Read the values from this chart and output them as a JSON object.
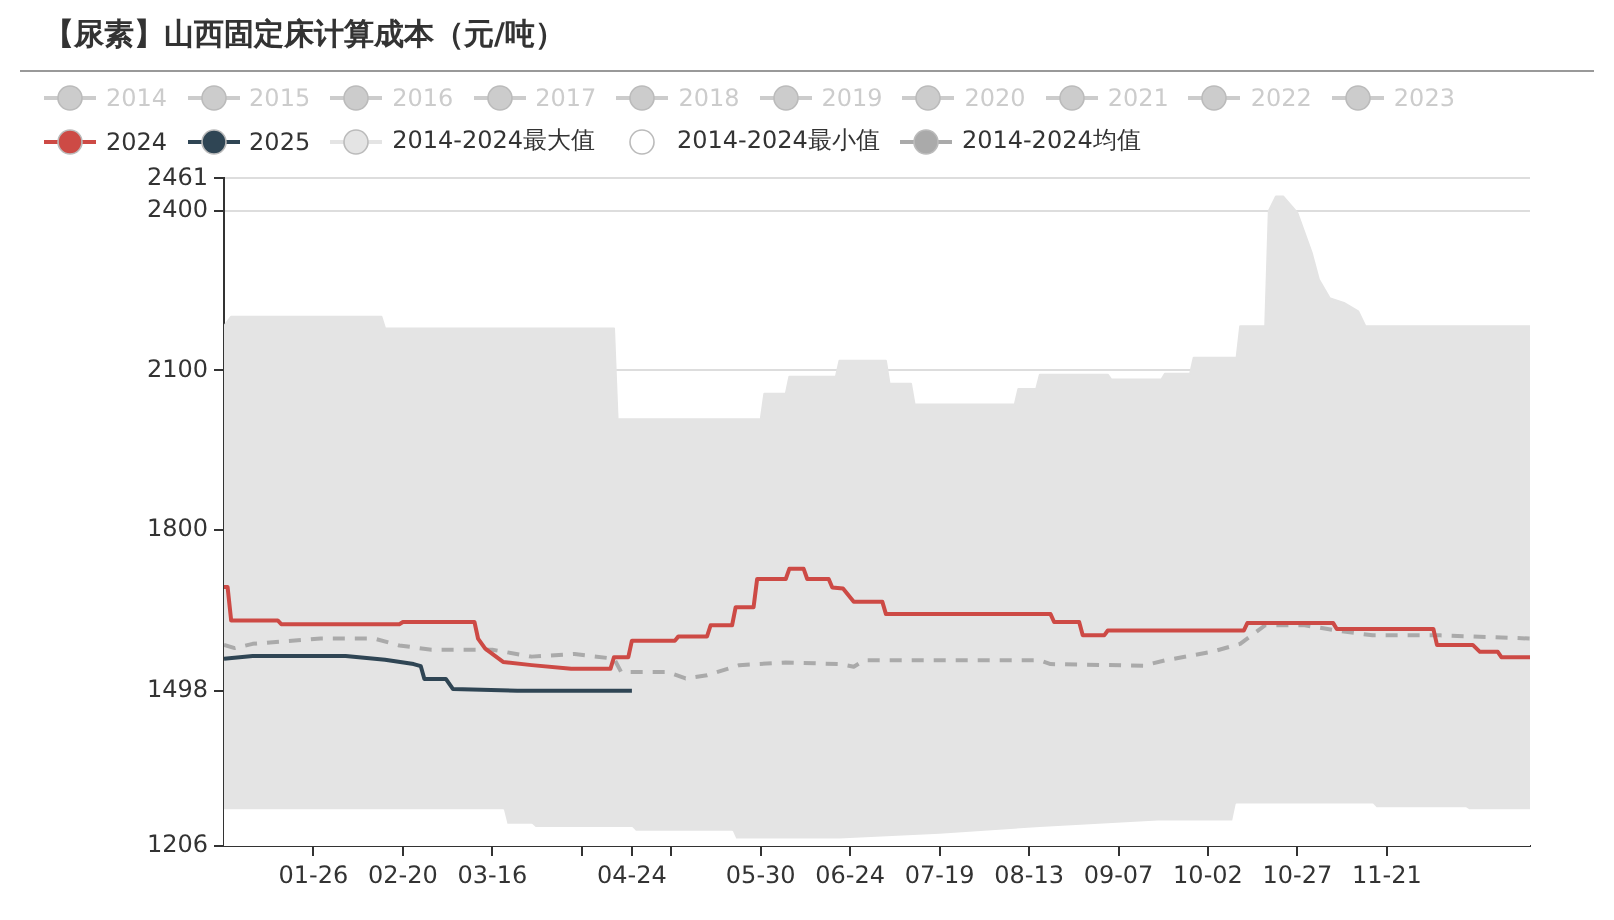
{
  "chart_data": {
    "type": "line",
    "title": "【尿素】山西固定床计算成本（元/吨）",
    "xlim": [
      "--01-01",
      "--12-31"
    ],
    "xticks": [
      {
        "value": "--01-26",
        "label": "01-26"
      },
      {
        "value": "--02-20",
        "label": "02-20"
      },
      {
        "value": "--03-16",
        "label": "03-16"
      },
      {
        "value": "--04-10",
        "label": null
      },
      {
        "value": "--04-24",
        "label": "04-24"
      },
      {
        "value": "--05-05",
        "label": null
      },
      {
        "value": "--05-30",
        "label": "05-30"
      },
      {
        "value": "--06-24",
        "label": "06-24"
      },
      {
        "value": "--07-19",
        "label": "07-19"
      },
      {
        "value": "--08-13",
        "label": "08-13"
      },
      {
        "value": "--09-07",
        "label": "09-07"
      },
      {
        "value": "--10-02",
        "label": "10-02"
      },
      {
        "value": "--10-27",
        "label": "10-27"
      },
      {
        "value": "--11-21",
        "label": "11-21"
      }
    ],
    "ylim": [
      1206,
      2461
    ],
    "yticks": [
      1206,
      1498,
      1800,
      2100,
      2400,
      2461
    ],
    "grid": "y",
    "legend": "top",
    "marker": "none",
    "series": [
      {
        "name": "2014",
        "color": "#cccccc"
      },
      {
        "name": "2015",
        "color": "#cccccc"
      },
      {
        "name": "2016",
        "color": "#cccccc"
      },
      {
        "name": "2017",
        "color": "#cccccc"
      },
      {
        "name": "2018",
        "color": "#cccccc"
      },
      {
        "name": "2019",
        "color": "#cccccc"
      },
      {
        "name": "2020",
        "color": "#cccccc"
      },
      {
        "name": "2021",
        "color": "#cccccc"
      },
      {
        "name": "2022",
        "color": "#cccccc"
      },
      {
        "name": "2023",
        "color": "#cccccc"
      },
      {
        "name": "2024",
        "color": "#cd4a45",
        "line_style": "solid",
        "x": [
          "--01-01",
          "--01-02",
          "--01-03",
          "--01-16",
          "--01-17",
          "--02-19",
          "--02-20",
          "--03-11",
          "--03-12",
          "--03-14",
          "--03-19",
          "--03-27",
          "--04-07",
          "--04-18",
          "--04-19",
          "--04-23",
          "--04-24",
          "--05-06",
          "--05-07",
          "--05-15",
          "--05-16",
          "--05-22",
          "--05-23",
          "--05-28",
          "--05-29",
          "--06-06",
          "--06-07",
          "--06-11",
          "--06-12",
          "--06-18",
          "--06-19",
          "--06-22",
          "--06-25",
          "--07-03",
          "--07-04",
          "--08-19",
          "--08-20",
          "--08-27",
          "--08-28",
          "--09-03",
          "--09-04",
          "--10-12",
          "--10-13",
          "--11-06",
          "--11-07",
          "--12-04",
          "--12-05",
          "--12-15",
          "--12-17",
          "--12-22",
          "--12-23",
          "--12-31"
        ],
        "values": [
          1693,
          1693,
          1630,
          1630,
          1623,
          1623,
          1627,
          1627,
          1596,
          1577,
          1552,
          1546,
          1539,
          1539,
          1561,
          1561,
          1592,
          1592,
          1600,
          1600,
          1621,
          1621,
          1655,
          1655,
          1708,
          1708,
          1727,
          1727,
          1708,
          1708,
          1692,
          1690,
          1665,
          1665,
          1642,
          1642,
          1627,
          1627,
          1602,
          1602,
          1611,
          1611,
          1625,
          1625,
          1614,
          1614,
          1584,
          1584,
          1571,
          1571,
          1561,
          1561
        ]
      },
      {
        "name": "2025",
        "color": "#2f4554",
        "line_style": "solid",
        "x": [
          "--01-01",
          "--01-09",
          "--02-04",
          "--02-15",
          "--02-23",
          "--02-25",
          "--02-26",
          "--03-03",
          "--03-05",
          "--03-23",
          "--04-24"
        ],
        "values": [
          1558,
          1563,
          1563,
          1556,
          1548,
          1544,
          1520,
          1520,
          1501,
          1498,
          1498
        ]
      },
      {
        "name": "2014-2024最大值",
        "type": "area",
        "color": "#e4e4e4",
        "x": [
          "--01-01",
          "--01-03",
          "--02-14",
          "--02-15",
          "--04-19",
          "--04-20",
          "--05-30",
          "--05-31",
          "--06-06",
          "--06-07",
          "--06-20",
          "--06-21",
          "--07-04",
          "--07-05",
          "--07-11",
          "--07-12",
          "--08-09",
          "--08-10",
          "--08-15",
          "--08-16",
          "--09-04",
          "--09-05",
          "--09-19",
          "--09-20",
          "--09-27",
          "--09-28",
          "--10-10",
          "--10-11",
          "--10-18",
          "--10-19",
          "--10-21",
          "--10-23",
          "--10-27",
          "--10-31",
          "--11-02",
          "--11-05",
          "--11-09",
          "--11-13",
          "--11-15",
          "--12-31"
        ],
        "values": [
          2183,
          2201,
          2201,
          2179,
          2179,
          2008,
          2008,
          2056,
          2056,
          2088,
          2088,
          2118,
          2118,
          2075,
          2075,
          2036,
          2036,
          2065,
          2065,
          2092,
          2092,
          2083,
          2083,
          2094,
          2094,
          2124,
          2124,
          2183,
          2183,
          2400,
          2427,
          2427,
          2396,
          2321,
          2271,
          2236,
          2227,
          2211,
          2183,
          2183
        ]
      },
      {
        "name": "2014-2024最小值",
        "type": "area",
        "color": "#ffffff",
        "line_style": "solid",
        "x": [
          "--01-01",
          "--03-19",
          "--03-20",
          "--03-27",
          "--03-28",
          "--04-24",
          "--04-25",
          "--05-22",
          "--05-23",
          "--06-21",
          "--07-19",
          "--08-16",
          "--09-18",
          "--10-09",
          "--10-10",
          "--11-17",
          "--11-18",
          "--12-13",
          "--12-14",
          "--12-31"
        ],
        "values": [
          1273,
          1273,
          1246,
          1246,
          1240,
          1240,
          1233,
          1233,
          1218,
          1218,
          1227,
          1240,
          1252,
          1252,
          1284,
          1284,
          1277,
          1277,
          1273,
          1273
        ]
      },
      {
        "name": "2014-2024均值",
        "color": "#aaaaaa",
        "line_style": "dashed",
        "x": [
          "--01-01",
          "--01-04",
          "--01-09",
          "--01-28",
          "--02-12",
          "--02-19",
          "--02-28",
          "--03-16",
          "--03-27",
          "--04-08",
          "--04-19",
          "--04-21",
          "--05-04",
          "--05-09",
          "--05-15",
          "--05-24",
          "--06-06",
          "--06-21",
          "--06-25",
          "--06-28",
          "--08-16",
          "--08-19",
          "--09-14",
          "--09-20",
          "--10-03",
          "--10-11",
          "--10-18",
          "--10-29",
          "--11-07",
          "--11-17",
          "--12-06",
          "--12-31"
        ],
        "values": [
          1584,
          1578,
          1586,
          1596,
          1596,
          1583,
          1575,
          1575,
          1562,
          1567,
          1558,
          1533,
          1533,
          1521,
          1527,
          1546,
          1551,
          1548,
          1543,
          1555,
          1555,
          1548,
          1545,
          1555,
          1571,
          1586,
          1621,
          1621,
          1611,
          1602,
          1602,
          1596
        ]
      }
    ]
  }
}
